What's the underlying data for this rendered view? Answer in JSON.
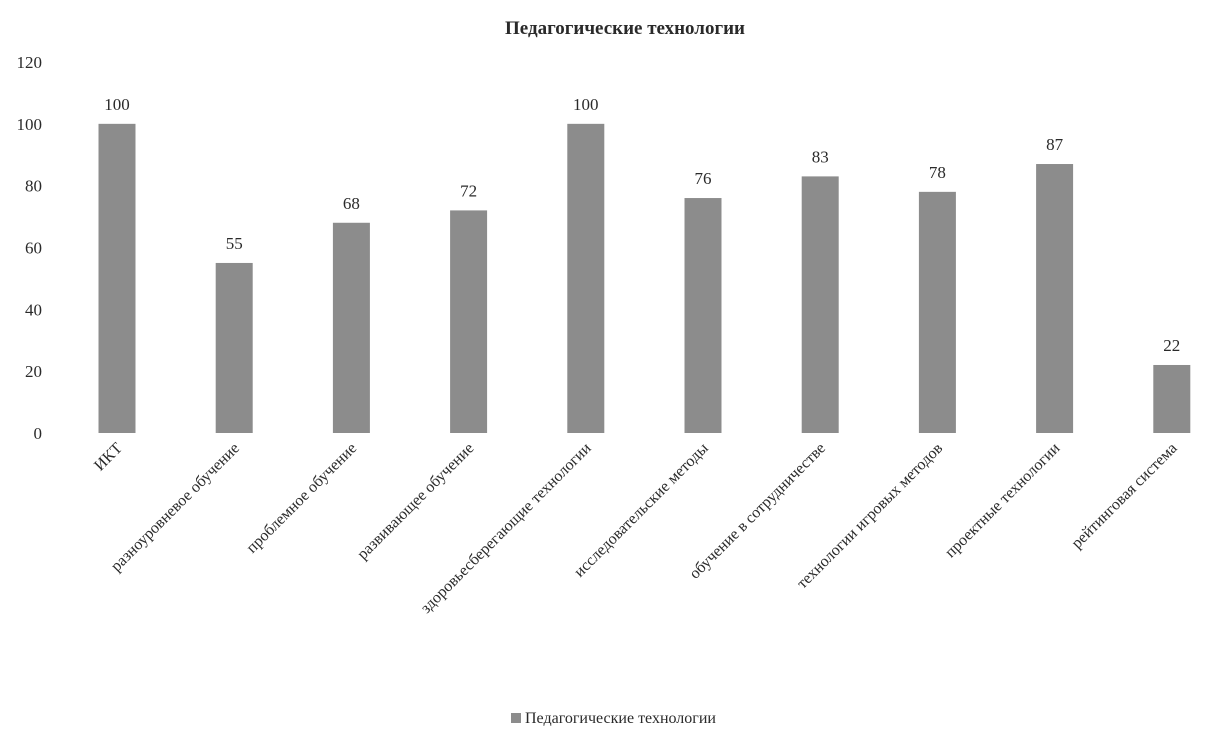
{
  "chart_data": {
    "type": "bar",
    "title": "Педагогические технологии",
    "xlabel": "",
    "ylabel": "",
    "ylim": [
      0,
      120
    ],
    "yticks": [
      0,
      20,
      40,
      60,
      80,
      100,
      120
    ],
    "categories": [
      "ИКТ",
      "разноуровневое обучение",
      "проблемное обучение",
      "развивающее обучение",
      "здоровьесберегающие технологии",
      "исследовательские методы",
      "обучение в сотрудничестве",
      "технологии игровых методов",
      "проектные технологии",
      "рейтинговая система"
    ],
    "series": [
      {
        "name": "Педагогические технологии",
        "values": [
          100,
          55,
          68,
          72,
          100,
          76,
          83,
          78,
          87,
          22
        ]
      }
    ],
    "data_labels": [
      "100",
      "55",
      "68",
      "72",
      "100",
      "76",
      "83",
      "78",
      "87",
      "22"
    ],
    "grid": false,
    "legend": "bottom",
    "colors": {
      "bar": "#8c8c8c",
      "text": "#2a2a2a"
    }
  }
}
